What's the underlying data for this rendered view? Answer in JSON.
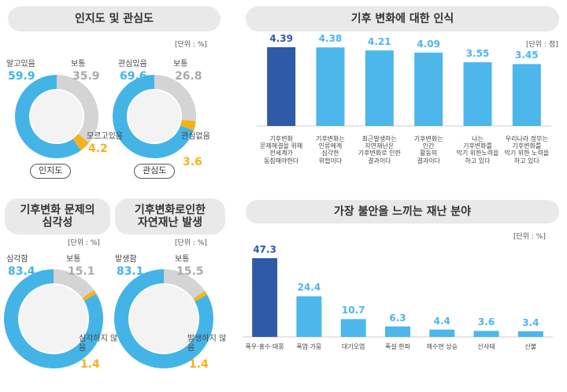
{
  "chart_data": [
    {
      "type": "pie",
      "title": "인지도 및 관심도",
      "unit": "[단위 : %]",
      "name": "인지도",
      "categories": [
        "알고있음",
        "보통",
        "모르고있음"
      ],
      "values": [
        59.9,
        35.9,
        4.2
      ],
      "colors": [
        "#44b4e6",
        "#d4d4d4",
        "#f5b21b"
      ]
    },
    {
      "type": "pie",
      "name": "관심도",
      "categories": [
        "관심있음",
        "보통",
        "관심없음"
      ],
      "values": [
        69.6,
        26.8,
        3.6
      ],
      "colors": [
        "#44b4e6",
        "#d4d4d4",
        "#f5b21b"
      ]
    },
    {
      "type": "bar",
      "title": "기후 변화에 대한 인식",
      "unit": "[단위 : 점]",
      "categories": [
        "기후변화\n문제해결을 위해\n전세계가\n동참해야한다",
        "기후변화는\n인류에게\n심각한\n위협이다",
        "최근발생하는\n자연재난은\n기후변화로 인한\n결과이다",
        "기후변화는\n인간\n활동의\n결과이다",
        "나는\n기후변화를\n막기 위한노력을\n하고 있다",
        "우리나라 정부는\n기후변화를\n막기 위한 노력을\n하고 있다"
      ],
      "values": [
        4.39,
        4.38,
        4.21,
        4.09,
        3.55,
        3.45
      ],
      "colors": [
        "#2f5aa8",
        "#4db6ea",
        "#4db6ea",
        "#4db6ea",
        "#4db6ea",
        "#4db6ea"
      ]
    },
    {
      "type": "pie",
      "title": "기후변화 문제의\n심각성",
      "unit": "[단위 : %]",
      "categories": [
        "심각함",
        "보통",
        "심각하지 않음"
      ],
      "values": [
        83.4,
        15.1,
        1.4
      ],
      "colors": [
        "#44b4e6",
        "#d4d4d4",
        "#f5b21b"
      ]
    },
    {
      "type": "pie",
      "title": "기후변화로인한\n자연재난 발생",
      "unit": "[단위 : %]",
      "categories": [
        "발생함",
        "보통",
        "발생하지 않음"
      ],
      "values": [
        83.1,
        15.5,
        1.4
      ],
      "colors": [
        "#44b4e6",
        "#d4d4d4",
        "#f5b21b"
      ]
    },
    {
      "type": "bar",
      "title": "가장 불안을 느끼는 재난 분야",
      "unit": "[단위 : %]",
      "categories": [
        "폭우·홍수·태풍",
        "폭염·가뭄",
        "대기오염",
        "폭설·한파",
        "해수면 상승",
        "산사태",
        "산불"
      ],
      "values": [
        47.3,
        24.4,
        10.7,
        6.3,
        4.4,
        3.6,
        3.4
      ],
      "colors": [
        "#2f5aa8",
        "#4db6ea",
        "#4db6ea",
        "#4db6ea",
        "#4db6ea",
        "#4db6ea",
        "#4db6ea"
      ]
    }
  ]
}
